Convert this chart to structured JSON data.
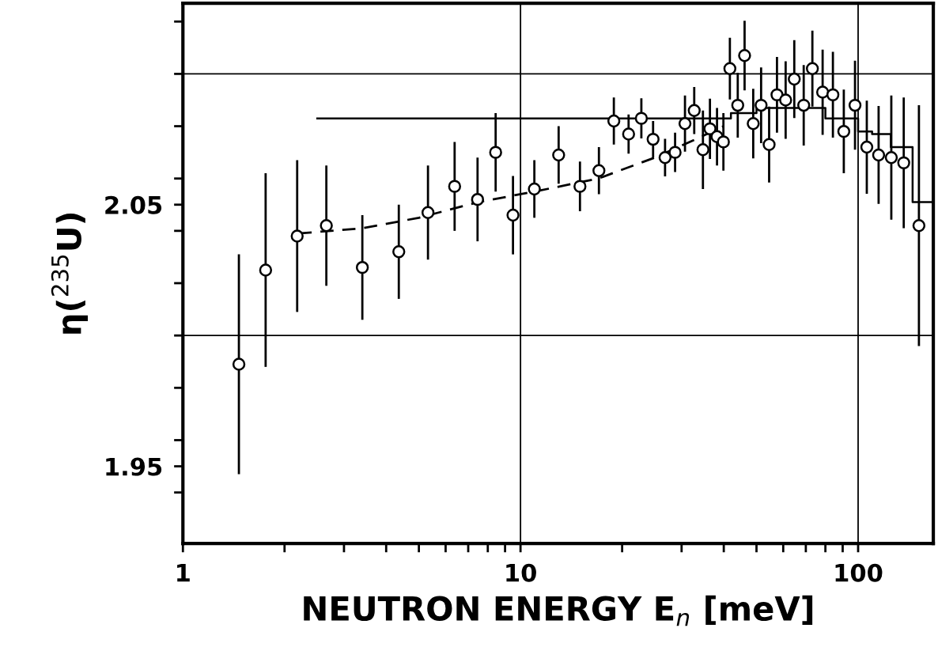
{
  "chart_data": {
    "type": "scatter",
    "xlabel": "NEUTRON ENERGY E$_{n}$ [meV]",
    "ylabel": "η($^{235}$U)",
    "log": "x",
    "grid": false,
    "xlim": [
      1,
      167
    ],
    "ylim": [
      1.9205,
      2.127
    ],
    "xticks": [
      1,
      {
        "value": 2,
        "label": null
      },
      {
        "value": 3,
        "label": null
      },
      {
        "value": 4,
        "label": null
      },
      {
        "value": 5,
        "label": null
      },
      {
        "value": 6,
        "label": null
      },
      {
        "value": 7,
        "label": null
      },
      {
        "value": 8,
        "label": null
      },
      {
        "value": 9,
        "label": null
      },
      10,
      {
        "value": 20,
        "label": null
      },
      {
        "value": 30,
        "label": null
      },
      {
        "value": 40,
        "label": null
      },
      {
        "value": 50,
        "label": null
      },
      {
        "value": 60,
        "label": null
      },
      {
        "value": 70,
        "label": null
      },
      {
        "value": 80,
        "label": null
      },
      {
        "value": 90,
        "label": null
      },
      100
    ],
    "yticks": [
      {
        "value": 1.94,
        "label": null
      },
      1.95,
      {
        "value": 1.96,
        "label": null
      },
      {
        "value": 1.98,
        "label": null
      },
      {
        "value": 2.0,
        "label": null
      },
      {
        "value": 2.02,
        "label": null
      },
      {
        "value": 2.04,
        "label": null
      },
      2.05,
      {
        "value": 2.06,
        "label": null
      },
      {
        "value": 2.08,
        "label": null
      },
      {
        "value": 2.1,
        "label": null
      },
      {
        "value": 2.12,
        "label": null
      }
    ],
    "ref_lines": [
      {
        "axis": "y",
        "value": 2.1,
        "color": "#000000",
        "line_style": "solid"
      },
      {
        "axis": "y",
        "value": 2.0,
        "color": "#000000",
        "line_style": "solid"
      },
      {
        "axis": "x",
        "value": 10,
        "color": "#000000",
        "line_style": "solid"
      },
      {
        "axis": "x",
        "value": 100,
        "color": "#000000",
        "line_style": "solid"
      }
    ],
    "series": [
      {
        "color": "#000000",
        "marker": "circle",
        "x": [
          1.465,
          1.758,
          2.18,
          2.66,
          3.4,
          4.36,
          5.32,
          6.38,
          7.46,
          8.44,
          9.5,
          10.99,
          12.97,
          15.0,
          17.07,
          18.9,
          20.9,
          22.8,
          24.7,
          26.8,
          28.7,
          30.7,
          32.7,
          34.7,
          36.4,
          38.2,
          39.9,
          41.7,
          44.0,
          46.1,
          48.9,
          51.6,
          54.5,
          57.5,
          61.0,
          64.7,
          69.0,
          73.2,
          78.5,
          84.2,
          90.7,
          97.9,
          106.1,
          115.0,
          125.4,
          136.5,
          151.4
        ],
        "values": [
          1.989,
          2.025,
          2.038,
          2.042,
          2.026,
          2.032,
          2.047,
          2.057,
          2.052,
          2.07,
          2.046,
          2.056,
          2.069,
          2.057,
          2.063,
          2.082,
          2.077,
          2.083,
          2.075,
          2.068,
          2.07,
          2.081,
          2.086,
          2.071,
          2.079,
          2.076,
          2.074,
          2.102,
          2.088,
          2.107,
          2.081,
          2.088,
          2.073,
          2.092,
          2.09,
          2.098,
          2.088,
          2.102,
          2.093,
          2.092,
          2.078,
          2.088,
          2.072,
          2.069,
          2.068,
          2.066,
          2.042
        ],
        "errors": [
          0.042,
          0.037,
          0.029,
          0.023,
          0.02,
          0.018,
          0.018,
          0.017,
          0.016,
          0.015,
          0.015,
          0.011,
          0.011,
          0.0095,
          0.009,
          0.009,
          0.0075,
          0.0077,
          0.007,
          0.0072,
          0.0075,
          0.0107,
          0.009,
          0.015,
          0.0115,
          0.011,
          0.011,
          0.0118,
          0.0124,
          0.0133,
          0.0133,
          0.0145,
          0.0145,
          0.0145,
          0.0148,
          0.0149,
          0.0154,
          0.0145,
          0.0163,
          0.0164,
          0.016,
          0.017,
          0.0178,
          0.0187,
          0.0237,
          0.025,
          0.046
        ]
      },
      {
        "type": "line",
        "color": "#000000",
        "line_style": "dashed",
        "marker": "none",
        "x": [
          2.2,
          3.4,
          5.0,
          7.5,
          11,
          17,
          25,
          33,
          40
        ],
        "values": [
          2.039,
          2.041,
          2.045,
          2.051,
          2.055,
          2.06,
          2.068,
          2.075,
          2.08
        ]
      },
      {
        "type": "step",
        "color": "#000000",
        "line_style": "solid",
        "marker": "none",
        "x": [
          2.5,
          42,
          50,
          60,
          80,
          100,
          110,
          125,
          145,
          167
        ],
        "values": [
          2.083,
          2.085,
          2.087,
          2.087,
          2.083,
          2.078,
          2.077,
          2.072,
          2.051,
          2.051
        ]
      }
    ]
  }
}
